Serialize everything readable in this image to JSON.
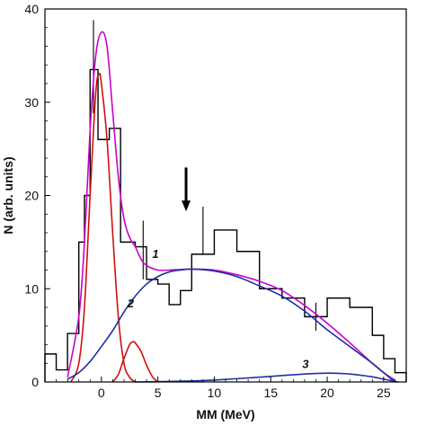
{
  "chart_data": {
    "type": "line",
    "xlabel": "MM (MeV)",
    "ylabel": "N (arb. units)",
    "xlim": [
      -5,
      27
    ],
    "ylim": [
      0,
      40
    ],
    "x_ticks": [
      0,
      5,
      10,
      15,
      20,
      25
    ],
    "y_ticks": [
      0,
      10,
      20,
      30,
      40
    ],
    "x_tick_labels": [
      "0",
      "5",
      "10",
      "15",
      "20",
      "25"
    ],
    "y_tick_labels": [
      "0",
      "10",
      "20",
      "30",
      "40"
    ],
    "grid": false,
    "legend": "none",
    "histogram": {
      "name": "data",
      "color": "#000000",
      "bin_edges": [
        -5,
        -4,
        -3,
        -2,
        -1.5,
        -1,
        -0.3,
        0.7,
        1.7,
        2,
        3,
        4,
        5,
        6,
        7,
        8,
        10,
        12,
        14,
        16,
        18,
        20,
        22,
        24,
        25,
        26,
        27
      ],
      "counts": [
        3,
        1.3,
        5.2,
        15,
        20,
        33.5,
        26,
        27.2,
        15,
        15,
        14.5,
        11,
        10.5,
        8.3,
        9.8,
        13.7,
        16.3,
        14,
        10,
        9,
        7,
        9,
        8,
        5,
        2.5,
        1
      ]
    },
    "error_bars": [
      {
        "x": -0.7,
        "y": 33.5,
        "low": 28.8,
        "high": 38.8
      },
      {
        "x": 3.7,
        "y": 14.5,
        "low": 11,
        "high": 17.3
      },
      {
        "x": 9,
        "y": 16.3,
        "low": 13.7,
        "high": 18.8
      },
      {
        "x": 19,
        "y": 7,
        "low": 5.5,
        "high": 8.5
      }
    ],
    "arrow": {
      "x": 7.5,
      "y_from": 23,
      "y_to": 18.5
    },
    "series": [
      {
        "color": "#cc00cc",
        "x": [
          -3,
          -2,
          -1.5,
          -1,
          -0.5,
          0,
          0.5,
          1,
          1.5,
          2,
          2.5,
          3,
          3.5,
          4,
          5,
          6,
          8,
          10,
          12,
          14,
          16,
          18,
          20,
          22,
          24,
          25,
          26
        ],
        "y": [
          0.5,
          7,
          15,
          27,
          35,
          37.5,
          36,
          29,
          22,
          17.5,
          15.5,
          14.5,
          13.2,
          12.5,
          12,
          12,
          12.1,
          12,
          11.5,
          10.8,
          9.8,
          8.2,
          6.3,
          4.2,
          2,
          1,
          0.2
        ]
      },
      {
        "color": "#cc1111",
        "x": [
          -2.7,
          -2,
          -1.5,
          -1,
          -0.5,
          -0.2,
          0,
          0.5,
          1,
          1.5,
          2,
          2.5,
          3
        ],
        "y": [
          0,
          2,
          8,
          20,
          31,
          33,
          32,
          26,
          16,
          7,
          2,
          0.5,
          0
        ]
      },
      {
        "color": "#cc1111",
        "x": [
          1,
          1.5,
          2,
          2.5,
          2.8,
          3,
          3.5,
          4,
          4.5,
          5
        ],
        "y": [
          0,
          0.8,
          2.5,
          4,
          4.3,
          4.2,
          3.3,
          1.8,
          0.6,
          0
        ]
      },
      {
        "color": "#1f2fa3",
        "x": [
          -3,
          -2,
          -1,
          0,
          1,
          2,
          3,
          4,
          5,
          6,
          7,
          8,
          10,
          12,
          14,
          16,
          18,
          20,
          22,
          24,
          25,
          26
        ],
        "y": [
          0.3,
          1,
          2.2,
          3.8,
          5.5,
          7.5,
          9.2,
          10.5,
          11.3,
          11.8,
          12,
          12.1,
          11.9,
          11.3,
          10.3,
          9.2,
          7.6,
          5.6,
          3.8,
          2,
          1,
          0
        ]
      },
      {
        "color": "#1f2fa3",
        "x": [
          3,
          6,
          9,
          12,
          15,
          18,
          20,
          22,
          24,
          25,
          26.3
        ],
        "y": [
          0,
          0.05,
          0.15,
          0.35,
          0.6,
          0.85,
          0.95,
          0.85,
          0.55,
          0.3,
          0
        ]
      }
    ],
    "curve_labels": [
      {
        "text": "1",
        "x": 4.5,
        "y": 13.3
      },
      {
        "text": "2",
        "x": 2.3,
        "y": 8.0
      },
      {
        "text": "3",
        "x": 17.8,
        "y": 1.5
      }
    ]
  }
}
